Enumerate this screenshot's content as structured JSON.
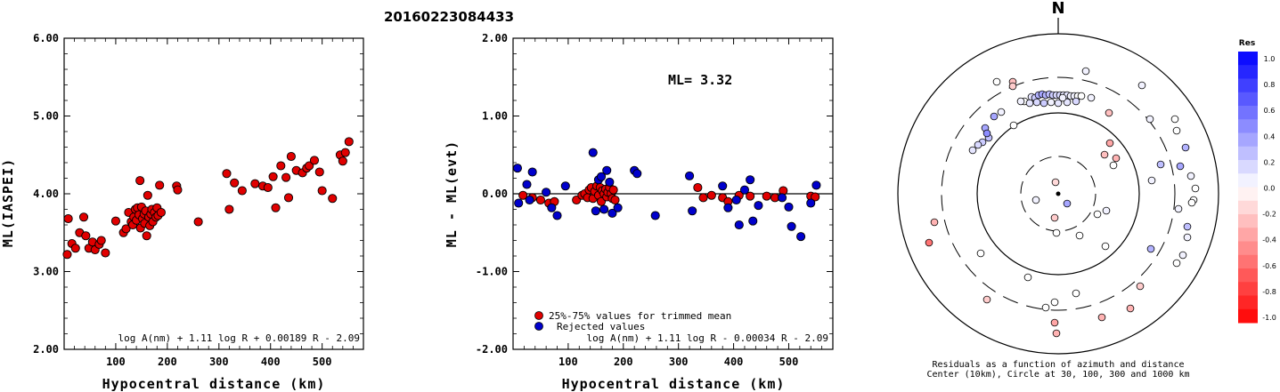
{
  "title": "20160223084433",
  "chart_data": [
    {
      "type": "scatter",
      "xlabel": "Hypocentral distance (km)",
      "ylabel": "ML(IASPEI)",
      "xlim": [
        0,
        580
      ],
      "ylim": [
        2.0,
        6.0
      ],
      "xticks": [
        "100",
        "200",
        "300",
        "400",
        "500"
      ],
      "yticks": [
        "2.00",
        "3.00",
        "4.00",
        "5.00",
        "6.00"
      ],
      "formula": "log A(nm) + 1.11 log R + 0.00189 R - 2.09",
      "series": [
        {
          "color": "#e00000",
          "points": [
            [
              6,
              3.22
            ],
            [
              8,
              3.68
            ],
            [
              15,
              3.36
            ],
            [
              22,
              3.3
            ],
            [
              30,
              3.5
            ],
            [
              38,
              3.7
            ],
            [
              42,
              3.46
            ],
            [
              48,
              3.3
            ],
            [
              55,
              3.38
            ],
            [
              60,
              3.28
            ],
            [
              68,
              3.35
            ],
            [
              72,
              3.4
            ],
            [
              80,
              3.24
            ],
            [
              100,
              3.65
            ],
            [
              115,
              3.5
            ],
            [
              120,
              3.55
            ],
            [
              125,
              3.76
            ],
            [
              130,
              3.64
            ],
            [
              133,
              3.6
            ],
            [
              135,
              3.7
            ],
            [
              138,
              3.8
            ],
            [
              140,
              3.66
            ],
            [
              142,
              3.82
            ],
            [
              145,
              3.73
            ],
            [
              147,
              4.17
            ],
            [
              148,
              3.56
            ],
            [
              150,
              3.83
            ],
            [
              152,
              3.68
            ],
            [
              155,
              3.74
            ],
            [
              156,
              3.62
            ],
            [
              158,
              3.78
            ],
            [
              160,
              3.46
            ],
            [
              162,
              3.98
            ],
            [
              164,
              3.7
            ],
            [
              166,
              3.59
            ],
            [
              168,
              3.74
            ],
            [
              170,
              3.8
            ],
            [
              172,
              3.64
            ],
            [
              175,
              3.76
            ],
            [
              178,
              3.7
            ],
            [
              180,
              3.82
            ],
            [
              182,
              3.72
            ],
            [
              185,
              4.11
            ],
            [
              188,
              3.76
            ],
            [
              218,
              4.1
            ],
            [
              220,
              4.05
            ],
            [
              260,
              3.64
            ],
            [
              315,
              4.26
            ],
            [
              320,
              3.8
            ],
            [
              330,
              4.14
            ],
            [
              345,
              4.04
            ],
            [
              370,
              4.13
            ],
            [
              385,
              4.1
            ],
            [
              395,
              4.08
            ],
            [
              405,
              4.22
            ],
            [
              410,
              3.82
            ],
            [
              420,
              4.36
            ],
            [
              430,
              4.21
            ],
            [
              435,
              3.95
            ],
            [
              440,
              4.48
            ],
            [
              450,
              4.3
            ],
            [
              462,
              4.27
            ],
            [
              470,
              4.33
            ],
            [
              475,
              4.36
            ],
            [
              485,
              4.43
            ],
            [
              495,
              4.28
            ],
            [
              500,
              4.04
            ],
            [
              520,
              3.94
            ],
            [
              535,
              4.5
            ],
            [
              540,
              4.42
            ],
            [
              545,
              4.53
            ],
            [
              552,
              4.67
            ]
          ]
        }
      ]
    },
    {
      "type": "scatter",
      "xlabel": "Hypocentral distance (km)",
      "ylabel": "ML - ML(evt)",
      "xlim": [
        0,
        580
      ],
      "ylim": [
        -2.0,
        2.0
      ],
      "xticks": [
        "100",
        "200",
        "300",
        "400",
        "500"
      ],
      "yticks": [
        "-2.00",
        "-1.00",
        "0.00",
        "1.00",
        "2.00"
      ],
      "annotation": "ML= 3.32",
      "formula": "log A(nm) + 1.11 log R - 0.00034 R - 2.09",
      "legend": [
        "25%-75% values for trimmed mean",
        "Rejected values"
      ],
      "series": [
        {
          "name": "25%-75% values for trimmed mean",
          "color": "#e00000",
          "points": [
            [
              18,
              -0.02
            ],
            [
              35,
              -0.05
            ],
            [
              50,
              -0.08
            ],
            [
              65,
              -0.12
            ],
            [
              75,
              -0.1
            ],
            [
              115,
              -0.08
            ],
            [
              125,
              -0.02
            ],
            [
              130,
              0.0
            ],
            [
              135,
              -0.05
            ],
            [
              138,
              0.05
            ],
            [
              142,
              0.08
            ],
            [
              145,
              -0.06
            ],
            [
              148,
              0.03
            ],
            [
              152,
              0.1
            ],
            [
              155,
              -0.02
            ],
            [
              158,
              0.08
            ],
            [
              160,
              -0.1
            ],
            [
              162,
              0.04
            ],
            [
              165,
              0.0
            ],
            [
              168,
              0.06
            ],
            [
              170,
              -0.04
            ],
            [
              172,
              0.02
            ],
            [
              175,
              0.08
            ],
            [
              178,
              0.0
            ],
            [
              180,
              -0.06
            ],
            [
              182,
              0.05
            ],
            [
              185,
              -0.08
            ],
            [
              335,
              0.08
            ],
            [
              345,
              -0.05
            ],
            [
              360,
              -0.02
            ],
            [
              380,
              -0.05
            ],
            [
              390,
              -0.1
            ],
            [
              410,
              -0.02
            ],
            [
              430,
              -0.03
            ],
            [
              460,
              -0.03
            ],
            [
              475,
              -0.05
            ],
            [
              490,
              0.04
            ],
            [
              540,
              -0.03
            ],
            [
              548,
              -0.04
            ]
          ]
        },
        {
          "name": "Rejected values",
          "color": "#0000cc",
          "points": [
            [
              8,
              0.33
            ],
            [
              10,
              -0.12
            ],
            [
              25,
              0.12
            ],
            [
              30,
              -0.08
            ],
            [
              35,
              0.28
            ],
            [
              60,
              0.02
            ],
            [
              70,
              -0.18
            ],
            [
              80,
              -0.28
            ],
            [
              95,
              0.1
            ],
            [
              145,
              0.53
            ],
            [
              150,
              -0.22
            ],
            [
              155,
              0.18
            ],
            [
              160,
              0.22
            ],
            [
              165,
              -0.2
            ],
            [
              170,
              0.3
            ],
            [
              175,
              0.15
            ],
            [
              180,
              -0.25
            ],
            [
              190,
              -0.18
            ],
            [
              220,
              0.3
            ],
            [
              225,
              0.26
            ],
            [
              258,
              -0.28
            ],
            [
              320,
              0.23
            ],
            [
              325,
              -0.22
            ],
            [
              380,
              0.1
            ],
            [
              390,
              -0.18
            ],
            [
              405,
              -0.08
            ],
            [
              410,
              -0.4
            ],
            [
              420,
              0.05
            ],
            [
              430,
              0.18
            ],
            [
              435,
              -0.35
            ],
            [
              445,
              -0.15
            ],
            [
              488,
              -0.05
            ],
            [
              500,
              -0.17
            ],
            [
              505,
              -0.42
            ],
            [
              522,
              -0.55
            ],
            [
              540,
              -0.12
            ],
            [
              550,
              0.11
            ]
          ]
        }
      ]
    }
  ],
  "polar": {
    "north_label": "N",
    "caption_line1": "Residuals as a function of azimuth and distance",
    "caption_line2": "Center (10km), Circle at 30, 100, 300 and 1000 km",
    "colorbar_title": "Res",
    "colorbar_labels": [
      "1.0",
      "0.8",
      "0.6",
      "0.4",
      "0.2",
      "0.0",
      "-0.2",
      "-0.4",
      "-0.6",
      "-0.8",
      "-1.0"
    ],
    "stations": [
      [
        0.0,
        0.0
      ],
      [
        0.2,
        0.1
      ],
      [
        0.0,
        -0.2
      ],
      [
        -0.4,
        0.4
      ],
      [
        0.0,
        0.0
      ],
      [
        0.1,
        0.0
      ],
      [
        0.2,
        -0.2
      ],
      [
        -0.3,
        0.0
      ],
      [
        -0.5,
        0.1
      ],
      [
        0.0,
        -0.3
      ],
      [
        0.2,
        0.3
      ],
      [
        -0.2,
        -0.2
      ],
      [
        0.1,
        0.0
      ],
      [
        0.3,
        -0.1
      ],
      [
        -0.1,
        0.2
      ],
      [
        0.0,
        -0.4
      ],
      [
        0.4,
        0.0
      ],
      [
        -0.2,
        -0.3
      ],
      [
        0.2,
        0.1
      ],
      [
        0.0,
        0.2
      ],
      [
        -0.4,
        -0.2
      ],
      [
        0.1,
        0.5
      ],
      [
        -0.3,
        0.0
      ],
      [
        0.2,
        -0.1
      ]
    ]
  }
}
